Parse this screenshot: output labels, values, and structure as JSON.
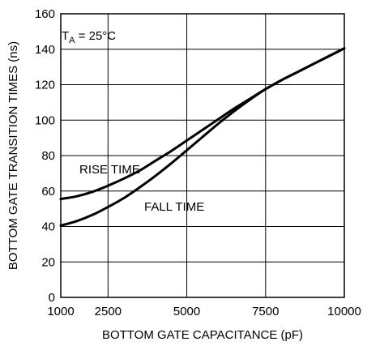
{
  "chart_data": {
    "type": "line",
    "xlabel": "BOTTOM GATE CAPACITANCE (pF)",
    "ylabel": "BOTTOM GATE TRANSITION TIMES (ns)",
    "xlim": [
      1000,
      10000
    ],
    "ylim": [
      0,
      160
    ],
    "x_ticks": [
      1000,
      2500,
      5000,
      7500,
      10000
    ],
    "y_ticks": [
      0,
      20,
      40,
      60,
      80,
      100,
      120,
      140,
      160
    ],
    "grid": true,
    "line_color": "#000000",
    "condition_label": {
      "prefix": "T",
      "subscript": "A",
      "suffix": " = 25°C"
    },
    "series": [
      {
        "name": "RISE TIME",
        "x": [
          1000,
          1500,
          2000,
          2500,
          3000,
          3500,
          4000,
          4500,
          5000,
          5500,
          6000,
          6500,
          7000,
          7500,
          8000,
          8500,
          9000,
          9500,
          10000
        ],
        "y": [
          55.5,
          57,
          59.5,
          63,
          67,
          71.5,
          77,
          82.5,
          88.5,
          94.5,
          100.5,
          106.5,
          112,
          117.5,
          122.5,
          127,
          131.5,
          136,
          140.5
        ]
      },
      {
        "name": "FALL TIME",
        "x": [
          1000,
          1500,
          2000,
          2500,
          3000,
          3500,
          4000,
          4500,
          5000,
          5500,
          6000,
          6500,
          7000,
          7500,
          8000,
          8500,
          9000,
          9500,
          10000
        ],
        "y": [
          40.5,
          43,
          46.5,
          51,
          56,
          62,
          68.5,
          75.5,
          83,
          90.5,
          98,
          105,
          111.5,
          117.5,
          122.5,
          127,
          131.5,
          136,
          140.5
        ]
      }
    ]
  }
}
